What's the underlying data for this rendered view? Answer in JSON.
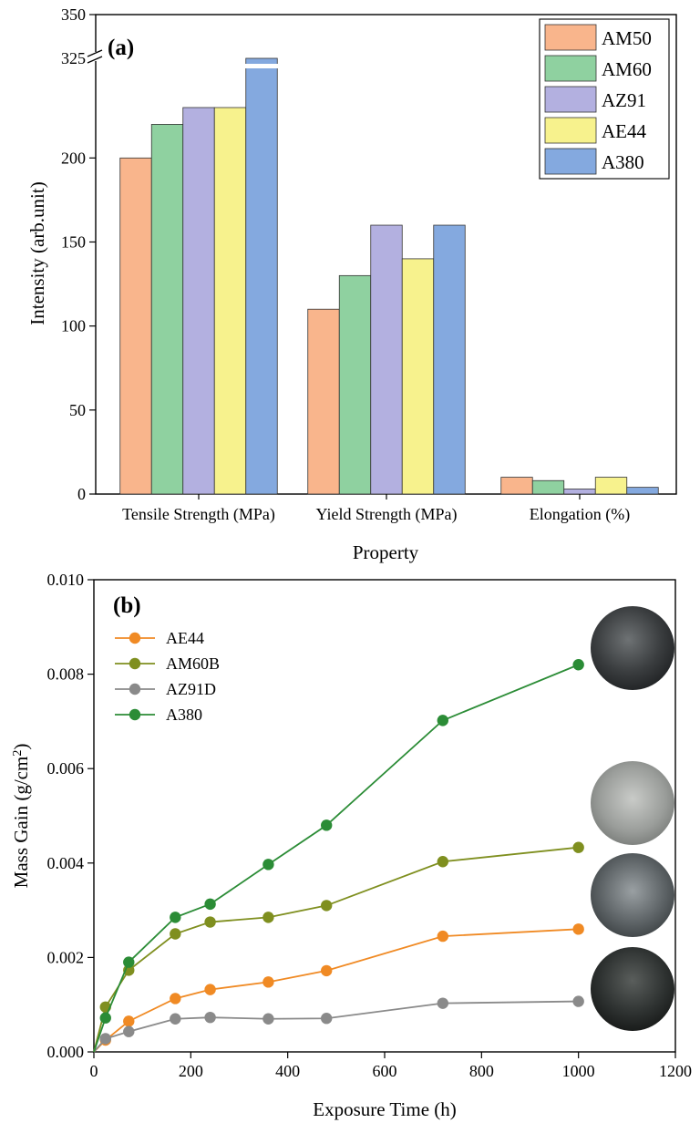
{
  "colors": {
    "AM50": "#f9b58c",
    "AM60": "#8fd1a0",
    "AZ91": "#b3b0e0",
    "AE44": "#f7f28d",
    "A380": "#84a9df",
    "line_AE44": "#f08a24",
    "line_AM60B": "#7f8f1f",
    "line_AZ91D": "#8a8a8a",
    "line_A380": "#2b8c36"
  },
  "chart_data": [
    {
      "type": "bar",
      "panel_label": "(a)",
      "categories": [
        "Tensile Strength (MPa)",
        "Yield Strength (MPa)",
        "Elongation (%)"
      ],
      "series": [
        {
          "name": "AM50",
          "values": [
            200,
            110,
            10
          ]
        },
        {
          "name": "AM60",
          "values": [
            220,
            130,
            8
          ]
        },
        {
          "name": "AZ91",
          "values": [
            230,
            160,
            3
          ]
        },
        {
          "name": "AE44",
          "values": [
            230,
            140,
            10
          ]
        },
        {
          "name": "A380",
          "values": [
            325,
            160,
            4
          ]
        }
      ],
      "xlabel": "Property",
      "ylabel": "Intensity (arb.unit)",
      "ylim": [
        0,
        350
      ],
      "axis_break": true,
      "yticks": [
        "0",
        "50",
        "100",
        "150",
        "200",
        "325",
        "350"
      ],
      "legend": "top-right"
    },
    {
      "type": "line",
      "panel_label": "(b)",
      "x": [
        0,
        24,
        72,
        168,
        240,
        360,
        480,
        720,
        1000
      ],
      "series": [
        {
          "name": "AE44",
          "values": [
            0,
            0.00025,
            0.00065,
            0.00113,
            0.00132,
            0.00148,
            0.00172,
            0.00245,
            0.0026
          ]
        },
        {
          "name": "AM60B",
          "values": [
            0,
            0.00095,
            0.00173,
            0.0025,
            0.00275,
            0.00285,
            0.0031,
            0.00403,
            0.00433
          ]
        },
        {
          "name": "AZ91D",
          "values": [
            0,
            0.00028,
            0.00043,
            0.0007,
            0.00073,
            0.0007,
            0.00071,
            0.00103,
            0.00107
          ]
        },
        {
          "name": "A380",
          "values": [
            0,
            0.00072,
            0.0019,
            0.00285,
            0.00313,
            0.00397,
            0.0048,
            0.00702,
            0.0082
          ]
        }
      ],
      "xlabel": "Exposure Time (h)",
      "ylabel_main": "Mass Gain (g/cm",
      "ylabel_sup": "2",
      "ylabel_close": ")",
      "xlim": [
        0,
        1200
      ],
      "ylim": [
        0,
        0.01
      ],
      "xticks": [
        "0",
        "200",
        "400",
        "600",
        "800",
        "1000",
        "1200"
      ],
      "yticks": [
        "0.000",
        "0.002",
        "0.004",
        "0.006",
        "0.008",
        "0.010"
      ],
      "legend": "top-left"
    }
  ]
}
